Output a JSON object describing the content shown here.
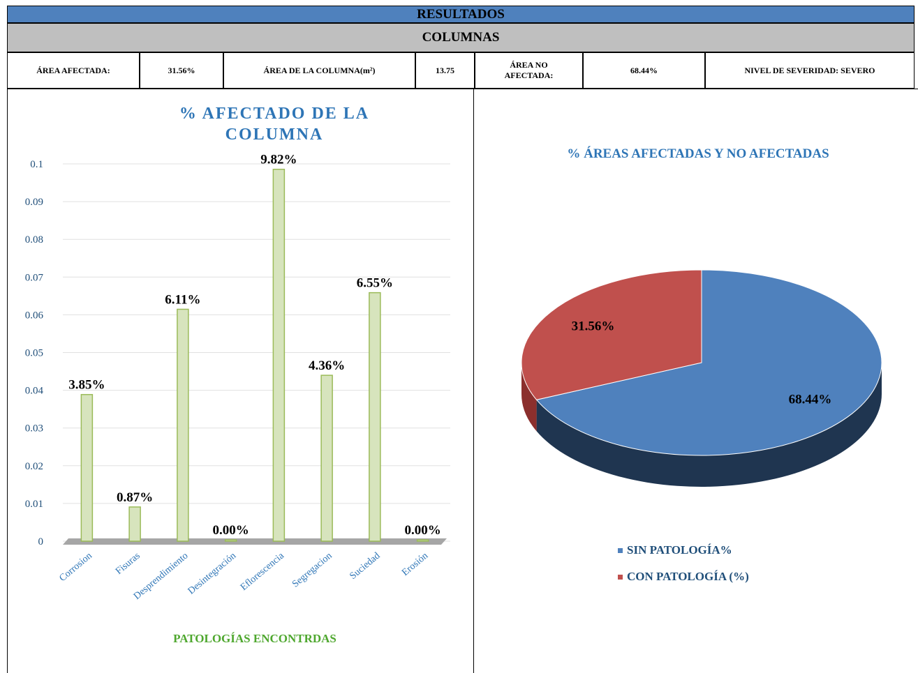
{
  "header": {
    "title": "RESULTADOS",
    "subtitle": "COLUMNAS",
    "cells": [
      "ÁREA AFECTADA:",
      "31.56%",
      "ÁREA DE LA COLUMNA(m²)",
      13.75,
      "ÁREA NO AFECTADA:",
      "68.44%",
      "NIVEL DE SEVERIDAD: SEVERO"
    ]
  },
  "chart_data": [
    {
      "type": "bar",
      "title": "% AFECTADO DE LA COLUMNA",
      "x_label": "PATOLOGÍAS ENCONTRDAS",
      "categories": [
        "Corrosion",
        "Fisuras",
        "Desprendimiento",
        "Desintegración",
        "Eflorescencia",
        "Segregacion",
        "Suciedad",
        "Erosión"
      ],
      "values": [
        0.0385,
        0.0087,
        0.0611,
        0,
        0.0982,
        0.0436,
        0.0655,
        0
      ],
      "value_labels": [
        "3.85%",
        "0.87%",
        "6.11%",
        "0.00%",
        "9.82%",
        "4.36%",
        "6.55%",
        "0.00%"
      ],
      "color": "#d7e4bd",
      "ylim": [
        0,
        0.1
      ],
      "yticks": [
        0,
        0.01,
        0.02,
        0.03,
        0.04,
        0.05,
        0.06,
        0.07,
        0.08,
        0.09,
        0.1
      ],
      "grid": true
    },
    {
      "type": "pie",
      "title": "% ÁREAS AFECTADAS Y NO AFECTADAS",
      "categories": [
        "SIN PATOLOGÍA%",
        "CON PATOLOGÍA (%)"
      ],
      "values": [
        68.44,
        31.56
      ],
      "value_labels": [
        "68.44%",
        "31.56%"
      ],
      "colors": [
        "#4f81bd",
        "#c0504d"
      ],
      "legend": "bottom"
    }
  ]
}
